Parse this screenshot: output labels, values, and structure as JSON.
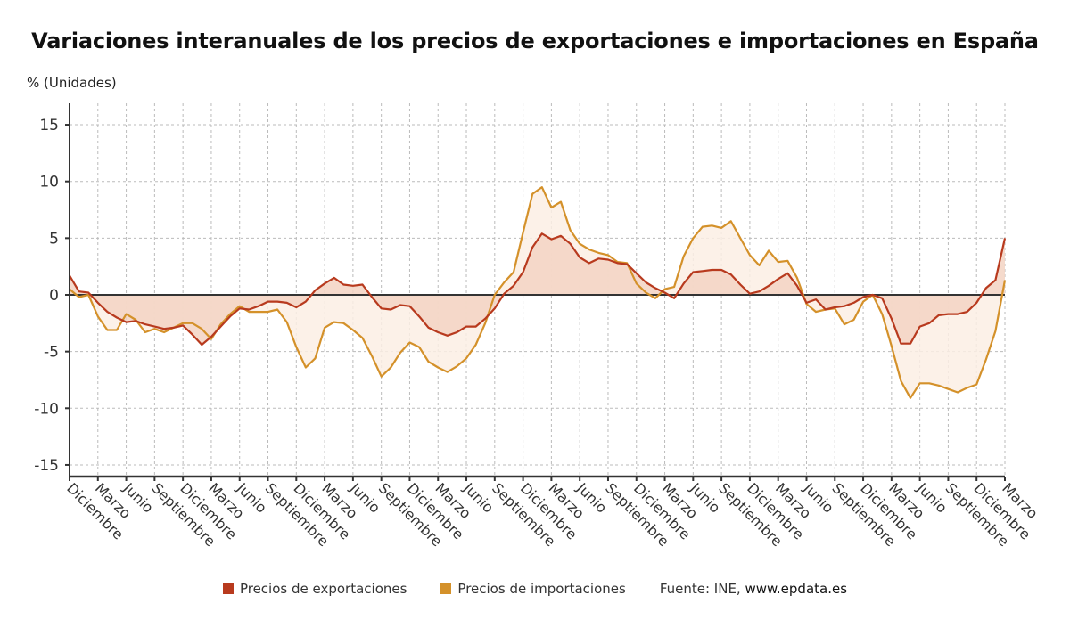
{
  "chart_data": {
    "type": "line",
    "title": "Variaciones interanuales de los precios de exportaciones e importaciones en España",
    "ylabel": "% (Unidades)",
    "xlabel": "",
    "ylim": [
      -16.5,
      17
    ],
    "yticks": [
      15,
      10,
      5,
      0,
      -5,
      -10,
      -15
    ],
    "grid": true,
    "legend_position": "bottom",
    "xtick_labels": [
      "Diciembre",
      "Marzo",
      "Junio",
      "Septiembre",
      "Diciembre",
      "Marzo",
      "Junio",
      "Septiembre",
      "Diciembre",
      "Marzo",
      "Junio",
      "Septiembre",
      "Diciembre",
      "Marzo",
      "Junio",
      "Septiembre",
      "Diciembre",
      "Marzo",
      "Junio",
      "Septiembre",
      "Diciembre",
      "Marzo",
      "Junio",
      "Septiembre",
      "Diciembre",
      "Marzo",
      "Junio",
      "Septiembre",
      "Diciembre",
      "Marzo",
      "Junio",
      "Septiembre",
      "Diciembre",
      "Marzo"
    ],
    "months_per_tick": 3,
    "series": [
      {
        "name": "Precios de exportaciones",
        "color": "#b83a1e",
        "fill": "#f3d3c3",
        "values": [
          1.7,
          0.3,
          0.2,
          -0.7,
          -1.5,
          -2.0,
          -2.4,
          -2.3,
          -2.6,
          -2.8,
          -3.0,
          -2.9,
          -2.7,
          -3.5,
          -4.4,
          -3.7,
          -2.8,
          -1.9,
          -1.2,
          -1.3,
          -1.0,
          -0.6,
          -0.6,
          -0.7,
          -1.1,
          -0.6,
          0.4,
          1.0,
          1.5,
          0.9,
          0.8,
          0.9,
          -0.2,
          -1.2,
          -1.3,
          -0.9,
          -1.0,
          -1.9,
          -2.9,
          -3.3,
          -3.6,
          -3.3,
          -2.8,
          -2.8,
          -2.1,
          -1.2,
          0.1,
          0.8,
          2.0,
          4.2,
          5.4,
          4.9,
          5.2,
          4.5,
          3.3,
          2.8,
          3.2,
          3.1,
          2.8,
          2.7,
          1.9,
          1.1,
          0.6,
          0.2,
          -0.3,
          1.0,
          2.0,
          2.1,
          2.2,
          2.2,
          1.8,
          0.9,
          0.1,
          0.3,
          0.8,
          1.4,
          1.9,
          0.8,
          -0.7,
          -0.4,
          -1.3,
          -1.1,
          -1.0,
          -0.7,
          -0.2,
          0.0,
          -0.3,
          -2.1,
          -4.3,
          -4.3,
          -2.8,
          -2.5,
          -1.8,
          -1.7,
          -1.7,
          -1.5,
          -0.7,
          0.6,
          1.3,
          5.0
        ]
      },
      {
        "name": "Precios de importaciones",
        "color": "#d4912a",
        "fill": "#fcefe4",
        "values": [
          0.5,
          -0.2,
          0.0,
          -1.9,
          -3.1,
          -3.1,
          -1.7,
          -2.2,
          -3.3,
          -3.0,
          -3.3,
          -2.9,
          -2.5,
          -2.5,
          -3.0,
          -3.9,
          -2.6,
          -1.7,
          -1.0,
          -1.5,
          -1.5,
          -1.5,
          -1.3,
          -2.4,
          -4.6,
          -6.4,
          -5.6,
          -2.9,
          -2.4,
          -2.5,
          -3.1,
          -3.8,
          -5.4,
          -7.2,
          -6.4,
          -5.1,
          -4.2,
          -4.6,
          -5.9,
          -6.4,
          -6.8,
          -6.3,
          -5.6,
          -4.4,
          -2.5,
          0.0,
          1.1,
          2.0,
          5.5,
          8.9,
          9.5,
          7.7,
          8.2,
          5.7,
          4.5,
          4.0,
          3.7,
          3.5,
          2.9,
          2.8,
          1.0,
          0.2,
          -0.3,
          0.5,
          0.7,
          3.4,
          5.0,
          6.0,
          6.1,
          5.9,
          6.5,
          5.0,
          3.5,
          2.6,
          3.9,
          2.9,
          3.0,
          1.5,
          -0.8,
          -1.5,
          -1.3,
          -1.2,
          -2.6,
          -2.2,
          -0.6,
          0.0,
          -1.7,
          -4.5,
          -7.6,
          -9.1,
          -7.8,
          -7.8,
          -8.0,
          -8.3,
          -8.6,
          -8.2,
          -7.9,
          -5.7,
          -3.2,
          1.3
        ]
      }
    ],
    "source_label": "Fuente: INE,",
    "source_site": "www.epdata.es"
  }
}
